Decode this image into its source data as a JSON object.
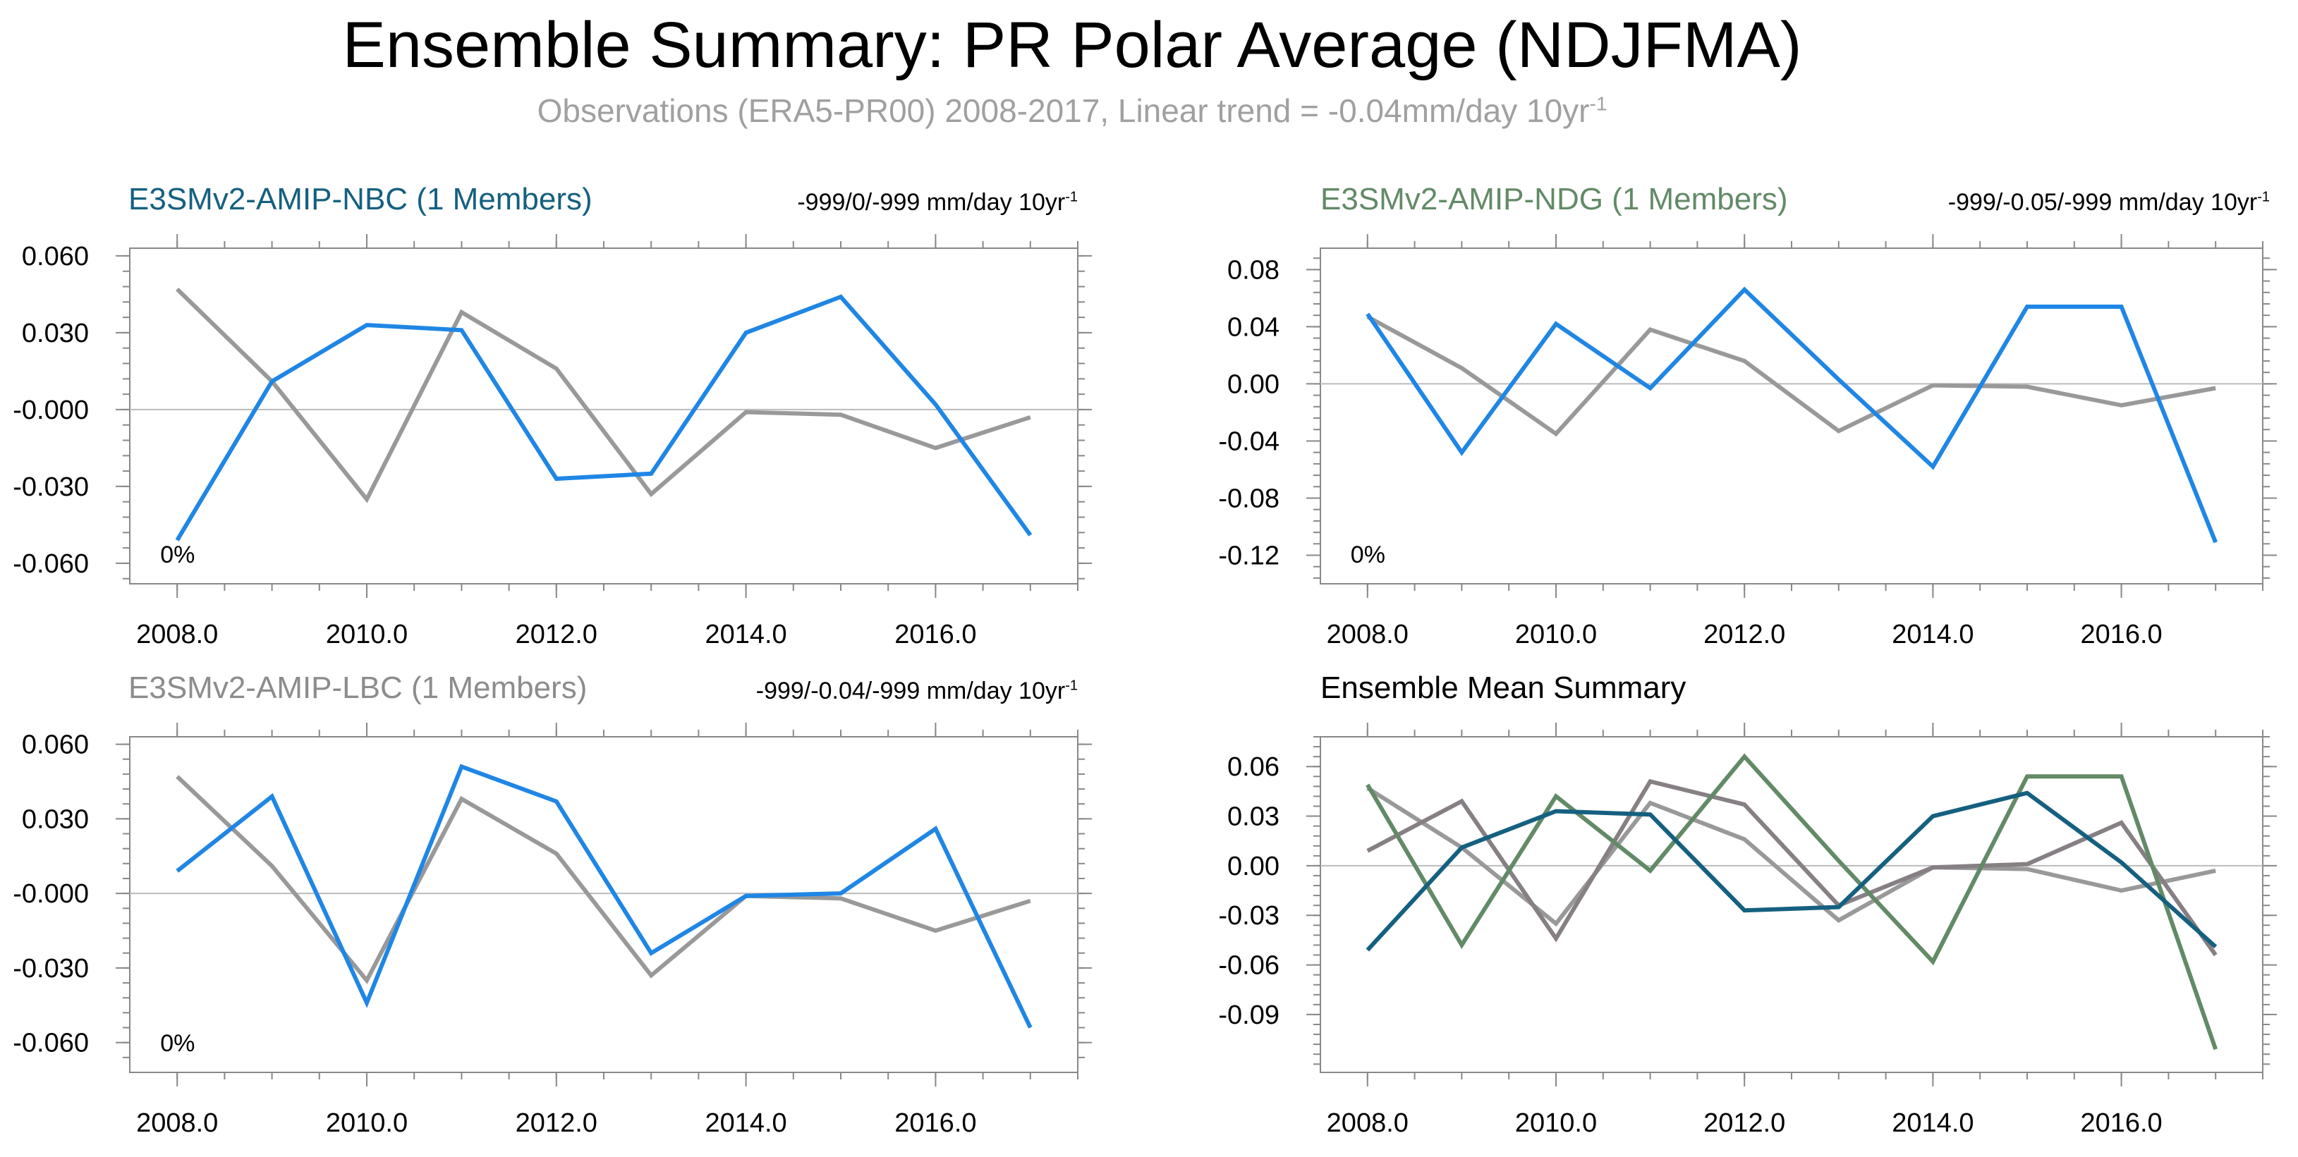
{
  "page": {
    "title": "Ensemble Summary: PR Polar Average (NDJFMA)",
    "subtitle": "Observations (ERA5-PR00) 2008-2017, Linear trend = -0.04mm/day 10yr",
    "subtitle_sup": "-1"
  },
  "colors": {
    "obs": "#999999",
    "model_line": "#1f86e5",
    "nbc": "#156080",
    "ndg": "#628a66",
    "lbc": "#8c8c8c",
    "lbc_mean": "#867f84",
    "axis": "#888888",
    "zero_line": "#bbbbbb"
  },
  "panels": [
    {
      "title": "E3SMv2-AMIP-NBC (1 Members)",
      "title_color": "#156080",
      "trend": "-999/0/-999 mm/day 10yr",
      "trend_sup": "-1",
      "pct": "0%"
    },
    {
      "title": "E3SMv2-AMIP-NDG (1 Members)",
      "title_color": "#628a66",
      "trend": "-999/-0.05/-999 mm/day 10yr",
      "trend_sup": "-1",
      "pct": "0%"
    },
    {
      "title": "E3SMv2-AMIP-LBC (1 Members)",
      "title_color": "#8c8c8c",
      "trend": "-999/-0.04/-999 mm/day 10yr",
      "trend_sup": "-1",
      "pct": "0%"
    },
    {
      "title": "Ensemble Mean Summary",
      "title_color": "#000000",
      "trend": "",
      "trend_sup": "",
      "pct": ""
    }
  ],
  "chart_data": [
    {
      "type": "line",
      "x": [
        2008,
        2009,
        2010,
        2011,
        2012,
        2013,
        2014,
        2015,
        2016,
        2017
      ],
      "xlim": [
        2007.5,
        2017.5
      ],
      "xticks": [
        2008,
        2010,
        2012,
        2014,
        2016
      ],
      "xtick_labels": [
        "2008.0",
        "2010.0",
        "2012.0",
        "2014.0",
        "2016.0"
      ],
      "ylim": [
        -0.068,
        0.063
      ],
      "yticks": [
        0.06,
        0.03,
        0.0,
        -0.03,
        -0.06
      ],
      "ytick_labels": [
        "0.060",
        "0.030",
        "-0.000",
        "-0.030",
        "-0.060"
      ],
      "series": [
        {
          "role": "obs",
          "color": "#999999",
          "values": [
            0.047,
            0.011,
            -0.035,
            0.038,
            0.016,
            -0.033,
            -0.001,
            -0.002,
            -0.015,
            -0.003
          ]
        },
        {
          "role": "model",
          "color": "#1f86e5",
          "values": [
            -0.051,
            0.011,
            0.033,
            0.031,
            -0.027,
            -0.025,
            0.03,
            0.044,
            0.002,
            -0.049
          ]
        }
      ]
    },
    {
      "type": "line",
      "x": [
        2008,
        2009,
        2010,
        2011,
        2012,
        2013,
        2014,
        2015,
        2016,
        2017
      ],
      "xlim": [
        2007.5,
        2017.5
      ],
      "xticks": [
        2008,
        2010,
        2012,
        2014,
        2016
      ],
      "xtick_labels": [
        "2008.0",
        "2010.0",
        "2012.0",
        "2014.0",
        "2016.0"
      ],
      "ylim": [
        -0.14,
        0.095
      ],
      "yticks": [
        0.08,
        0.04,
        0.0,
        -0.04,
        -0.08,
        -0.12
      ],
      "ytick_labels": [
        "0.08",
        "0.04",
        "0.00",
        "-0.04",
        "-0.08",
        "-0.12"
      ],
      "series": [
        {
          "role": "obs",
          "color": "#999999",
          "values": [
            0.047,
            0.011,
            -0.035,
            0.038,
            0.016,
            -0.033,
            -0.001,
            -0.002,
            -0.015,
            -0.003
          ]
        },
        {
          "role": "model",
          "color": "#1f86e5",
          "values": [
            0.049,
            -0.048,
            0.042,
            -0.003,
            0.066,
            0.003,
            -0.058,
            0.054,
            0.054,
            -0.111
          ]
        }
      ]
    },
    {
      "type": "line",
      "x": [
        2008,
        2009,
        2010,
        2011,
        2012,
        2013,
        2014,
        2015,
        2016,
        2017
      ],
      "xlim": [
        2007.5,
        2017.5
      ],
      "xticks": [
        2008,
        2010,
        2012,
        2014,
        2016
      ],
      "xtick_labels": [
        "2008.0",
        "2010.0",
        "2012.0",
        "2014.0",
        "2016.0"
      ],
      "ylim": [
        -0.072,
        0.063
      ],
      "yticks": [
        0.06,
        0.03,
        0.0,
        -0.03,
        -0.06
      ],
      "ytick_labels": [
        "0.060",
        "0.030",
        "-0.000",
        "-0.030",
        "-0.060"
      ],
      "series": [
        {
          "role": "obs",
          "color": "#999999",
          "values": [
            0.047,
            0.011,
            -0.035,
            0.038,
            0.016,
            -0.033,
            -0.001,
            -0.002,
            -0.015,
            -0.003
          ]
        },
        {
          "role": "model",
          "color": "#1f86e5",
          "values": [
            0.009,
            0.039,
            -0.044,
            0.051,
            0.037,
            -0.024,
            -0.001,
            0.0,
            0.026,
            -0.054
          ]
        }
      ]
    },
    {
      "type": "line",
      "x": [
        2008,
        2009,
        2010,
        2011,
        2012,
        2013,
        2014,
        2015,
        2016,
        2017
      ],
      "xlim": [
        2007.5,
        2017.5
      ],
      "xticks": [
        2008,
        2010,
        2012,
        2014,
        2016
      ],
      "xtick_labels": [
        "2008.0",
        "2010.0",
        "2012.0",
        "2014.0",
        "2016.0"
      ],
      "ylim": [
        -0.125,
        0.078
      ],
      "yticks": [
        0.06,
        0.03,
        0.0,
        -0.03,
        -0.06,
        -0.09
      ],
      "ytick_labels": [
        "0.06",
        "0.03",
        "0.00",
        "-0.03",
        "-0.06",
        "-0.09"
      ],
      "series": [
        {
          "role": "obs",
          "color": "#999999",
          "values": [
            0.047,
            0.011,
            -0.035,
            0.038,
            0.016,
            -0.033,
            -0.001,
            -0.002,
            -0.015,
            -0.003
          ]
        },
        {
          "role": "lbc",
          "color": "#867f84",
          "values": [
            0.009,
            0.039,
            -0.044,
            0.051,
            0.037,
            -0.024,
            -0.001,
            0.001,
            0.026,
            -0.054
          ]
        },
        {
          "role": "ndg",
          "color": "#628a66",
          "values": [
            0.049,
            -0.048,
            0.042,
            -0.003,
            0.066,
            0.003,
            -0.058,
            0.054,
            0.054,
            -0.111
          ]
        },
        {
          "role": "nbc",
          "color": "#156080",
          "values": [
            -0.051,
            0.011,
            0.033,
            0.031,
            -0.027,
            -0.025,
            0.03,
            0.044,
            0.002,
            -0.049
          ]
        }
      ]
    }
  ]
}
